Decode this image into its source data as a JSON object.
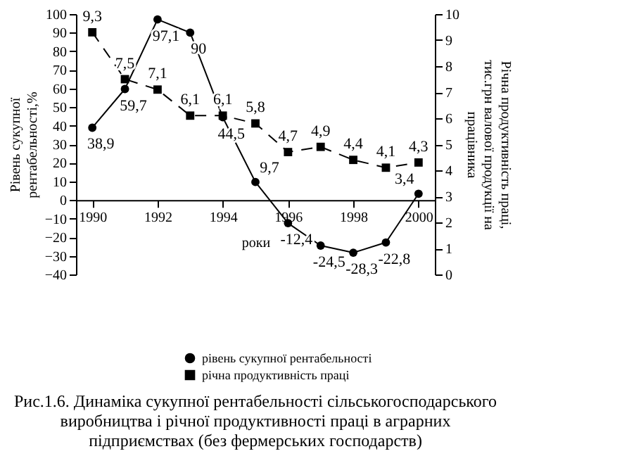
{
  "chart_data": {
    "type": "line",
    "title": "Рис.1.6. Динаміка сукупної рентабельності сільськогосподарського виробництва і річної продуктивності праці в аграрних підприємствах (без фермерських господарств)",
    "xlabel": "роки",
    "ylabel": "Рівень сукупної рентабельності,%",
    "y2label": "Річна продуктивність праці, тис.грн валової продукції на працівника",
    "x": [
      1990,
      1991,
      1992,
      1993,
      1994,
      1995,
      1996,
      1997,
      1998,
      1999,
      2000
    ],
    "xlim": [
      1989.5,
      2000.5
    ],
    "xticks": [
      1990,
      1992,
      1994,
      1996,
      1998,
      2000
    ],
    "ylim": [
      -40,
      100
    ],
    "yticks": [
      -40,
      -30,
      -20,
      -10,
      0,
      10,
      20,
      30,
      40,
      50,
      60,
      70,
      80,
      90,
      100
    ],
    "y2lim": [
      0,
      10
    ],
    "y2ticks": [
      0,
      1,
      2,
      3,
      4,
      5,
      6,
      7,
      8,
      9,
      10
    ],
    "series": [
      {
        "name": "рівень сукупної рентабельності",
        "color": "#000000",
        "marker": "circle",
        "line_style": "solid",
        "values": [
          38.9,
          59.7,
          97.1,
          90,
          44.5,
          9.7,
          -12.4,
          -24.5,
          -28.3,
          -22.8,
          3.4
        ],
        "value_labels": [
          "38,9",
          "59,7",
          "97,1",
          "90",
          "44,5",
          "9,7",
          "-12,4",
          "-24,5",
          "-28,3",
          "-22,8",
          "3,4"
        ]
      },
      {
        "name": "річна продуктивність праці",
        "color": "#000000",
        "marker": "square",
        "line_style": "dashed",
        "axis": "y2",
        "values": [
          9.3,
          7.5,
          7.1,
          6.1,
          6.1,
          5.8,
          4.7,
          4.9,
          4.4,
          4.1,
          4.3
        ],
        "value_labels": [
          "9,3",
          "7,5",
          "7,1",
          "6,1",
          "6,1",
          "5,8",
          "4,7",
          "4,9",
          "4,4",
          "4,1",
          "4,3"
        ]
      }
    ],
    "grid": false,
    "legend": "bottom"
  }
}
